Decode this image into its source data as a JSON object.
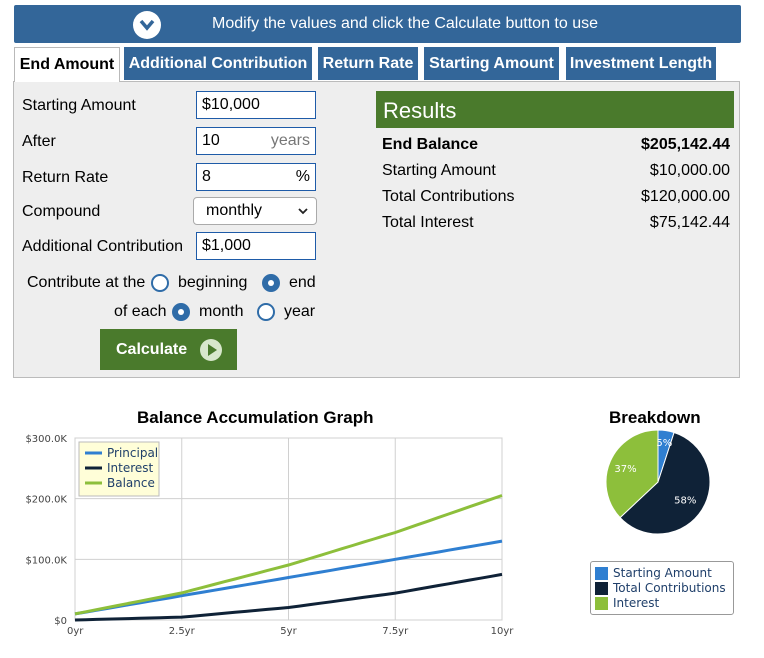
{
  "banner": {
    "text": "Modify the values and click the Calculate button to use"
  },
  "tabs": [
    {
      "label": "End Amount",
      "active": true
    },
    {
      "label": "Additional Contribution",
      "active": false
    },
    {
      "label": "Return Rate",
      "active": false
    },
    {
      "label": "Starting Amount",
      "active": false
    },
    {
      "label": "Investment Length",
      "active": false
    }
  ],
  "form": {
    "starting_amount": {
      "label": "Starting Amount",
      "value": "$10,000"
    },
    "after": {
      "label": "After",
      "value": "10",
      "suffix": "years"
    },
    "return_rate": {
      "label": "Return Rate",
      "value": "8",
      "suffix": "%"
    },
    "compound": {
      "label": "Compound",
      "value": "monthly"
    },
    "additional_contribution": {
      "label": "Additional Contribution",
      "value": "$1,000"
    },
    "contribute_at": {
      "label": "Contribute at the",
      "options": [
        "beginning",
        "end"
      ],
      "selected": "end"
    },
    "of_each": {
      "label": "of each",
      "options": [
        "month",
        "year"
      ],
      "selected": "month"
    },
    "calculate_label": "Calculate"
  },
  "results": {
    "title": "Results",
    "rows": [
      {
        "label": "End Balance",
        "value": "$205,142.44",
        "bold": true
      },
      {
        "label": "Starting Amount",
        "value": "$10,000.00",
        "bold": false
      },
      {
        "label": "Total Contributions",
        "value": "$120,000.00",
        "bold": false
      },
      {
        "label": "Total Interest",
        "value": "$75,142.44",
        "bold": false
      }
    ]
  },
  "colors": {
    "banner": "#336699",
    "green": "#4a7a2c",
    "principal": "#2f7fd1",
    "interest": "#0f2237",
    "balance": "#8dbf3b"
  },
  "chart_data": [
    {
      "type": "line",
      "title": "Balance Accumulation Graph",
      "x": [
        0,
        2.5,
        5,
        7.5,
        10
      ],
      "x_tick_labels": [
        "0yr",
        "2.5yr",
        "5yr",
        "7.5yr",
        "10yr"
      ],
      "y_tick_labels": [
        "$0",
        "$100.0K",
        "$200.0K",
        "$300.0K"
      ],
      "ylim": [
        0,
        300000
      ],
      "xlim": [
        0,
        10
      ],
      "grid": true,
      "legend_position": "top-left",
      "series": [
        {
          "name": "Principal",
          "values": [
            10000,
            40000,
            70000,
            100000,
            130000
          ]
        },
        {
          "name": "Interest",
          "values": [
            0,
            4700,
            20600,
            44300,
            75142
          ]
        },
        {
          "name": "Balance",
          "values": [
            10000,
            44700,
            90600,
            144300,
            205142
          ]
        }
      ]
    },
    {
      "type": "pie",
      "title": "Breakdown",
      "labels": [
        "Starting Amount",
        "Total Contributions",
        "Interest"
      ],
      "values": [
        5,
        58,
        37
      ],
      "value_labels": [
        "5%",
        "58%",
        "37%"
      ]
    }
  ]
}
